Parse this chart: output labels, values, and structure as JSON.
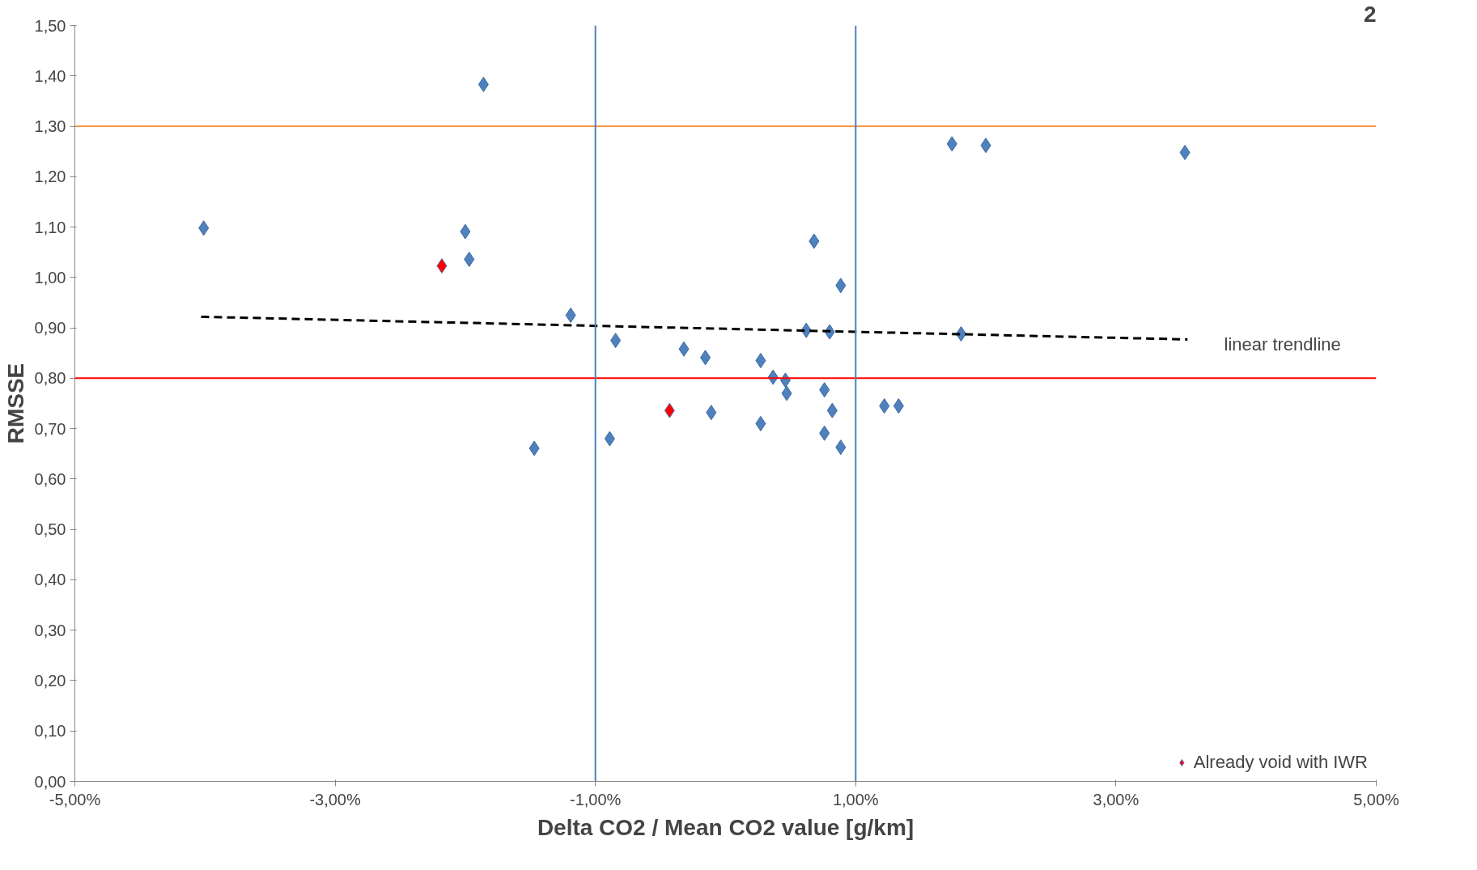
{
  "chart_data": {
    "type": "scatter",
    "ylabel": "RMSSE",
    "xlabel": "Delta CO2 / Mean CO2 value [g/km]",
    "xlim": [
      -5,
      5
    ],
    "ylim": [
      0,
      1.5
    ],
    "xticks": [
      {
        "value": -5,
        "label": "-5,00%"
      },
      {
        "value": -3,
        "label": "-3,00%"
      },
      {
        "value": -1,
        "label": "-1,00%"
      },
      {
        "value": 1,
        "label": "1,00%"
      },
      {
        "value": 3,
        "label": "3,00%"
      },
      {
        "value": 5,
        "label": "5,00%"
      }
    ],
    "yticks": [
      {
        "value": 0,
        "label": "0,00"
      },
      {
        "value": 0.1,
        "label": "0,10"
      },
      {
        "value": 0.2,
        "label": "0,20"
      },
      {
        "value": 0.3,
        "label": "0,30"
      },
      {
        "value": 0.4,
        "label": "0,40"
      },
      {
        "value": 0.5,
        "label": "0,50"
      },
      {
        "value": 0.6,
        "label": "0,60"
      },
      {
        "value": 0.7,
        "label": "0,70"
      },
      {
        "value": 0.8,
        "label": "0,80"
      },
      {
        "value": 0.9,
        "label": "0,90"
      },
      {
        "value": 1.0,
        "label": "1,00"
      },
      {
        "value": 1.1,
        "label": "1,10"
      },
      {
        "value": 1.2,
        "label": "1,20"
      },
      {
        "value": 1.3,
        "label": "1,30"
      },
      {
        "value": 1.4,
        "label": "1,40"
      },
      {
        "value": 1.5,
        "label": "1,50"
      }
    ],
    "marker": "diamond",
    "legend": "bottom right",
    "grid": false,
    "series": [
      {
        "color": "#4f81bd",
        "x": [
          -4.01,
          -1.86,
          -2.0,
          -1.97,
          -1.19,
          -0.845,
          -1.47,
          -0.89,
          -0.32,
          -0.155,
          -0.11,
          0.27,
          0.365,
          0.46,
          0.47,
          0.27,
          0.62,
          0.8,
          0.68,
          0.885,
          0.76,
          0.82,
          0.76,
          0.885,
          1.22,
          1.33,
          1.74,
          2.0,
          3.53,
          1.81
        ],
        "values": [
          1.098,
          1.383,
          1.091,
          1.036,
          0.925,
          0.875,
          0.661,
          0.68,
          0.858,
          0.841,
          0.732,
          0.835,
          0.802,
          0.796,
          0.77,
          0.71,
          0.895,
          0.892,
          1.072,
          0.984,
          0.777,
          0.736,
          0.691,
          0.663,
          0.745,
          0.745,
          1.265,
          1.262,
          1.248,
          0.888
        ]
      },
      {
        "name": "Already void with IWR",
        "color": "#ff0000",
        "x": [
          -2.18,
          -0.43
        ],
        "values": [
          1.023,
          0.736
        ]
      },
      {
        "type": "line",
        "color": "#000000",
        "line_style": "dashed",
        "marker": "none",
        "x": [
          -4.03,
          3.55
        ],
        "values": [
          0.922,
          0.877
        ]
      }
    ],
    "ref_lines": [
      {
        "axis": "y",
        "value": 1.3,
        "color": "#f79646"
      },
      {
        "axis": "y",
        "value": 0.8,
        "color": "#ff0000"
      },
      {
        "axis": "x",
        "value": -1,
        "color": "#4f81bd"
      },
      {
        "axis": "x",
        "value": 1,
        "color": "#4f81bd"
      }
    ],
    "annotations": [
      "linear trendline",
      "2"
    ]
  }
}
